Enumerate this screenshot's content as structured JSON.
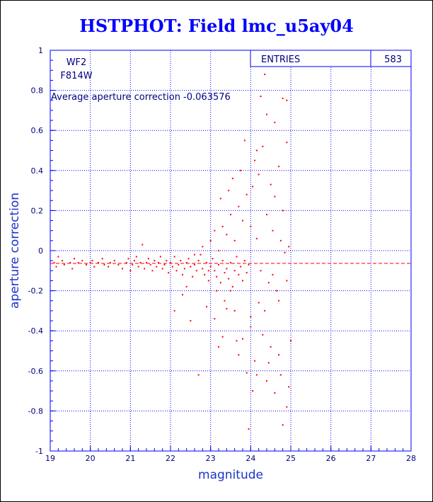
{
  "chart_data": {
    "type": "scatter",
    "title": "HSTPHOT: Field lmc_u5ay04",
    "xlabel": "magnitude",
    "ylabel": "aperture correction",
    "xlim": [
      19,
      28
    ],
    "ylim": [
      -1,
      1
    ],
    "x_ticks": [
      "19",
      "20",
      "21",
      "22",
      "23",
      "24",
      "25",
      "26",
      "27",
      "28"
    ],
    "y_ticks": [
      "-1",
      "-0.8",
      "-0.6",
      "-0.4",
      "-0.2",
      "0",
      "0.2",
      "0.4",
      "0.6",
      "0.8",
      "1"
    ],
    "grid": true,
    "stats_box": {
      "label": "ENTRIES",
      "value": "583"
    },
    "annotations": {
      "camera": "WF2",
      "filter": "F814W",
      "average_text": "Average aperture correction -0.063576"
    },
    "average_line": -0.063576,
    "points": [
      [
        19.1,
        -0.06
      ],
      [
        19.15,
        -0.08
      ],
      [
        19.2,
        -0.03
      ],
      [
        19.3,
        -0.05
      ],
      [
        19.35,
        -0.07
      ],
      [
        19.5,
        -0.06
      ],
      [
        19.55,
        -0.09
      ],
      [
        19.6,
        -0.04
      ],
      [
        19.7,
        -0.06
      ],
      [
        19.8,
        -0.05
      ],
      [
        19.9,
        -0.07
      ],
      [
        20.0,
        -0.06
      ],
      [
        20.05,
        -0.05
      ],
      [
        20.1,
        -0.08
      ],
      [
        20.2,
        -0.06
      ],
      [
        20.3,
        -0.04
      ],
      [
        20.35,
        -0.07
      ],
      [
        20.45,
        -0.08
      ],
      [
        20.5,
        -0.06
      ],
      [
        20.6,
        -0.05
      ],
      [
        20.7,
        -0.07
      ],
      [
        20.8,
        -0.09
      ],
      [
        20.9,
        -0.06
      ],
      [
        20.95,
        -0.04
      ],
      [
        21.0,
        -0.1
      ],
      [
        21.05,
        -0.07
      ],
      [
        21.1,
        -0.05
      ],
      [
        21.15,
        -0.03
      ],
      [
        21.2,
        -0.08
      ],
      [
        21.25,
        -0.06
      ],
      [
        21.3,
        0.03
      ],
      [
        21.35,
        -0.09
      ],
      [
        21.4,
        -0.06
      ],
      [
        21.45,
        -0.04
      ],
      [
        21.5,
        -0.07
      ],
      [
        21.55,
        -0.1
      ],
      [
        21.6,
        -0.05
      ],
      [
        21.65,
        -0.08
      ],
      [
        21.7,
        -0.06
      ],
      [
        21.75,
        -0.03
      ],
      [
        21.8,
        -0.09
      ],
      [
        21.85,
        -0.07
      ],
      [
        21.9,
        -0.05
      ],
      [
        21.95,
        -0.11
      ],
      [
        22.0,
        -0.06
      ],
      [
        22.05,
        -0.08
      ],
      [
        22.1,
        -0.03
      ],
      [
        22.15,
        -0.1
      ],
      [
        22.2,
        -0.07
      ],
      [
        22.25,
        -0.05
      ],
      [
        22.3,
        -0.12
      ],
      [
        22.35,
        -0.09
      ],
      [
        22.4,
        -0.06
      ],
      [
        22.45,
        -0.04
      ],
      [
        22.5,
        -0.08
      ],
      [
        22.55,
        -0.13
      ],
      [
        22.6,
        -0.07
      ],
      [
        22.65,
        -0.1
      ],
      [
        22.7,
        -0.05
      ],
      [
        22.75,
        -0.02
      ],
      [
        22.8,
        -0.09
      ],
      [
        22.85,
        -0.12
      ],
      [
        22.9,
        -0.06
      ],
      [
        22.95,
        -0.15
      ],
      [
        23.0,
        -0.08
      ],
      [
        23.05,
        -0.04
      ],
      [
        23.1,
        -0.1
      ],
      [
        23.15,
        -0.13
      ],
      [
        23.2,
        -0.07
      ],
      [
        23.25,
        -0.16
      ],
      [
        23.3,
        -0.05
      ],
      [
        23.35,
        -0.11
      ],
      [
        23.4,
        -0.09
      ],
      [
        23.45,
        -0.14
      ],
      [
        23.5,
        -0.06
      ],
      [
        23.55,
        -0.18
      ],
      [
        23.6,
        -0.1
      ],
      [
        23.65,
        -0.03
      ],
      [
        23.7,
        -0.12
      ],
      [
        23.75,
        -0.08
      ],
      [
        23.8,
        -0.15
      ],
      [
        23.85,
        -0.05
      ],
      [
        23.9,
        -0.11
      ],
      [
        23.95,
        -0.07
      ],
      [
        22.1,
        -0.3
      ],
      [
        22.3,
        -0.22
      ],
      [
        22.5,
        -0.35
      ],
      [
        22.7,
        -0.62
      ],
      [
        22.4,
        -0.18
      ],
      [
        22.9,
        -0.28
      ],
      [
        23.1,
        -0.34
      ],
      [
        23.2,
        -0.48
      ],
      [
        23.3,
        -0.43
      ],
      [
        23.4,
        -0.29
      ],
      [
        23.5,
        -0.2
      ],
      [
        23.6,
        -0.3
      ],
      [
        23.7,
        -0.52
      ],
      [
        23.8,
        -0.44
      ],
      [
        23.9,
        -0.61
      ],
      [
        24.0,
        -0.38
      ],
      [
        24.1,
        -0.55
      ],
      [
        24.2,
        -0.26
      ],
      [
        24.3,
        -0.42
      ],
      [
        24.4,
        -0.65
      ],
      [
        24.5,
        -0.48
      ],
      [
        24.6,
        -0.71
      ],
      [
        24.7,
        -0.52
      ],
      [
        24.8,
        -0.87
      ],
      [
        24.9,
        -0.78
      ],
      [
        24.95,
        -0.68
      ],
      [
        23.95,
        -0.89
      ],
      [
        24.0,
        -0.33
      ],
      [
        22.6,
        -0.02
      ],
      [
        22.8,
        0.02
      ],
      [
        23.0,
        0.05
      ],
      [
        23.1,
        0.1
      ],
      [
        23.2,
        0.0
      ],
      [
        23.3,
        0.12
      ],
      [
        23.4,
        0.08
      ],
      [
        23.5,
        0.18
      ],
      [
        23.6,
        0.05
      ],
      [
        23.7,
        0.22
      ],
      [
        23.8,
        0.15
      ],
      [
        23.9,
        0.28
      ],
      [
        24.0,
        0.12
      ],
      [
        24.1,
        0.45
      ],
      [
        24.2,
        0.38
      ],
      [
        24.3,
        0.52
      ],
      [
        24.4,
        0.18
      ],
      [
        24.5,
        0.33
      ],
      [
        24.6,
        0.27
      ],
      [
        24.7,
        0.42
      ],
      [
        24.8,
        0.2
      ],
      [
        24.9,
        0.54
      ],
      [
        24.35,
        0.88
      ],
      [
        24.25,
        0.77
      ],
      [
        24.8,
        0.76
      ],
      [
        24.9,
        0.75
      ],
      [
        24.4,
        0.68
      ],
      [
        24.6,
        0.64
      ],
      [
        23.85,
        0.55
      ],
      [
        24.15,
        0.5
      ],
      [
        24.05,
        0.32
      ],
      [
        23.75,
        0.4
      ],
      [
        23.55,
        0.36
      ],
      [
        23.25,
        0.26
      ],
      [
        23.45,
        0.3
      ],
      [
        24.55,
        0.1
      ],
      [
        24.75,
        0.05
      ],
      [
        24.85,
        -0.01
      ],
      [
        24.95,
        0.02
      ],
      [
        24.65,
        -0.2
      ],
      [
        24.45,
        -0.16
      ],
      [
        24.25,
        -0.1
      ],
      [
        24.15,
        0.06
      ],
      [
        24.35,
        -0.3
      ],
      [
        24.55,
        -0.12
      ],
      [
        24.7,
        -0.25
      ],
      [
        24.9,
        -0.15
      ],
      [
        25.0,
        -0.45
      ],
      [
        24.05,
        -0.7
      ],
      [
        24.15,
        -0.62
      ],
      [
        24.45,
        -0.56
      ],
      [
        24.75,
        -0.62
      ],
      [
        23.65,
        -0.45
      ],
      [
        23.35,
        -0.25
      ],
      [
        23.15,
        -0.2
      ],
      [
        22.95,
        -0.1
      ]
    ]
  }
}
